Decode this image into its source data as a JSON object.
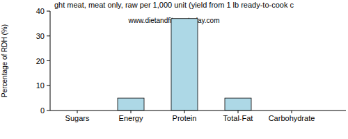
{
  "chart_data": {
    "type": "bar",
    "title": "ght meat, meat only, raw per 1,000 unit (yield from 1 lb ready-to-cook c",
    "subtitle": "www.dietandfitnesstoday.com",
    "y_label": "Percentage of RDH (%)",
    "categories": [
      "Sugars",
      "Energy",
      "Protein",
      "Total-Fat",
      "Carbohydrate"
    ],
    "values": [
      0,
      5,
      37,
      5,
      0
    ],
    "color": "#add8e6",
    "ylim": [
      0,
      40
    ],
    "yticks": [
      0,
      10,
      20,
      30,
      40
    ],
    "grid": false
  }
}
